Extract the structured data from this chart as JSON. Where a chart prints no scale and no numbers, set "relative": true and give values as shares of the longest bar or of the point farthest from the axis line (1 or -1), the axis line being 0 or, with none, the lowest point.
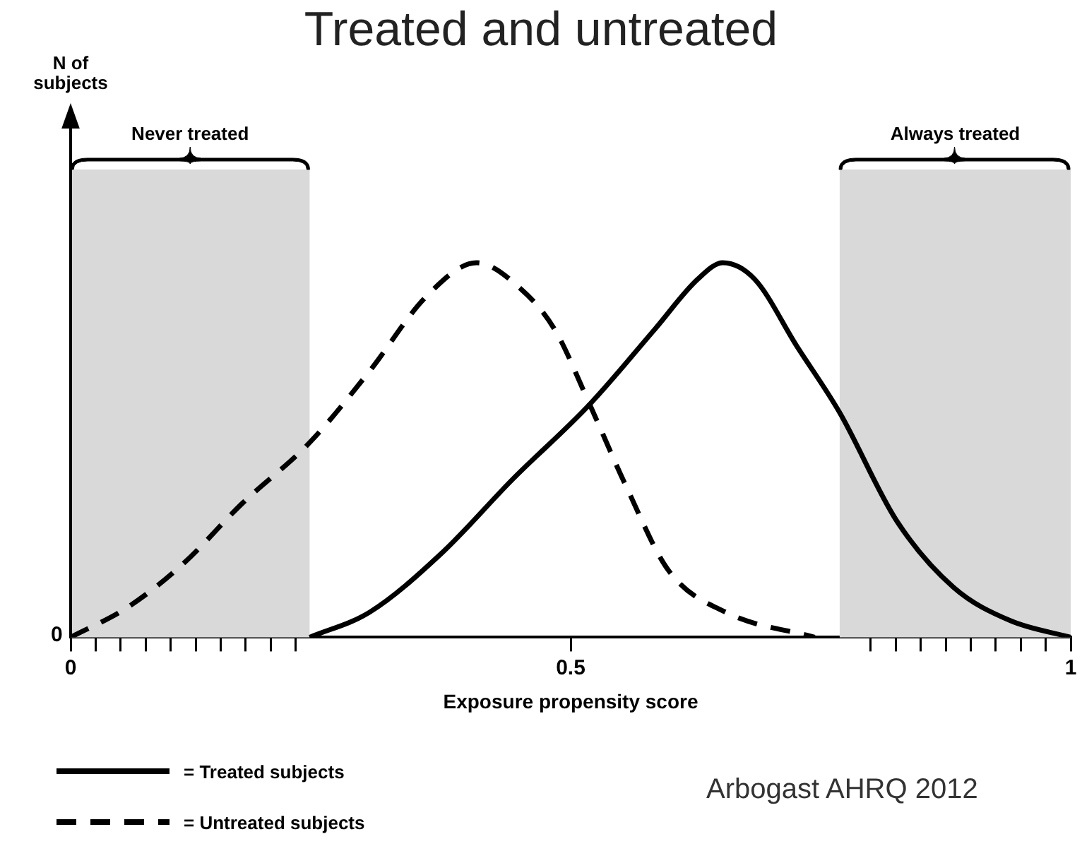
{
  "chart_data": {
    "type": "line",
    "title": "Treated and untreated",
    "xlabel": "Exposure propensity score",
    "relative": true,
    "xlim": [
      0,
      1
    ],
    "xticks": [
      0,
      {
        "value": 0.025,
        "label": null
      },
      {
        "value": 0.05,
        "label": null
      },
      {
        "value": 0.075,
        "label": null
      },
      {
        "value": 0.1,
        "label": null
      },
      {
        "value": 0.125,
        "label": null
      },
      {
        "value": 0.15,
        "label": null
      },
      {
        "value": 0.175,
        "label": null
      },
      {
        "value": 0.2,
        "label": null
      },
      {
        "value": 0.225,
        "label": null
      },
      0.5,
      {
        "value": 0.8,
        "label": null
      },
      {
        "value": 0.825,
        "label": null
      },
      {
        "value": 0.85,
        "label": null
      },
      {
        "value": 0.875,
        "label": null
      },
      {
        "value": 0.9,
        "label": null
      },
      {
        "value": 0.925,
        "label": null
      },
      {
        "value": 0.95,
        "label": null
      },
      {
        "value": 0.975,
        "label": null
      },
      1
    ],
    "grid": false,
    "legend": "bottom left",
    "marker": "none",
    "series": [
      {
        "name": "= Treated subjects",
        "color": "#000000",
        "line_style": "solid",
        "x": [
          0.239,
          0.299,
          0.37,
          0.442,
          0.519,
          0.584,
          0.627,
          0.652,
          0.684,
          0.726,
          0.769,
          0.826,
          0.883,
          0.94,
          1
        ],
        "values": [
          0,
          0.067,
          0.222,
          0.422,
          0.622,
          0.822,
          0.956,
          1,
          0.956,
          0.778,
          0.6,
          0.311,
          0.133,
          0.044,
          0
        ]
      },
      {
        "name": "= Untreated subjects",
        "color": "#000000",
        "line_style": "dashed",
        "x": [
          0,
          0.057,
          0.114,
          0.171,
          0.239,
          0.299,
          0.356,
          0.406,
          0.449,
          0.484,
          0.519,
          0.556,
          0.598,
          0.655,
          0.744
        ],
        "values": [
          0,
          0.08,
          0.2,
          0.356,
          0.52,
          0.711,
          0.911,
          1,
          0.933,
          0.822,
          0.622,
          0.4,
          0.178,
          0.067,
          0
        ]
      }
    ],
    "bands": [
      {
        "axis": "x",
        "from": 0,
        "to": 0.239,
        "label": "Never treated",
        "color": "#d9d9d9"
      },
      {
        "axis": "x",
        "from": 0.769,
        "to": 1,
        "label": "Always treated",
        "color": "#d9d9d9"
      }
    ],
    "annotations": [
      "N of subjects",
      "0",
      "Arbogast AHRQ 2012"
    ]
  }
}
